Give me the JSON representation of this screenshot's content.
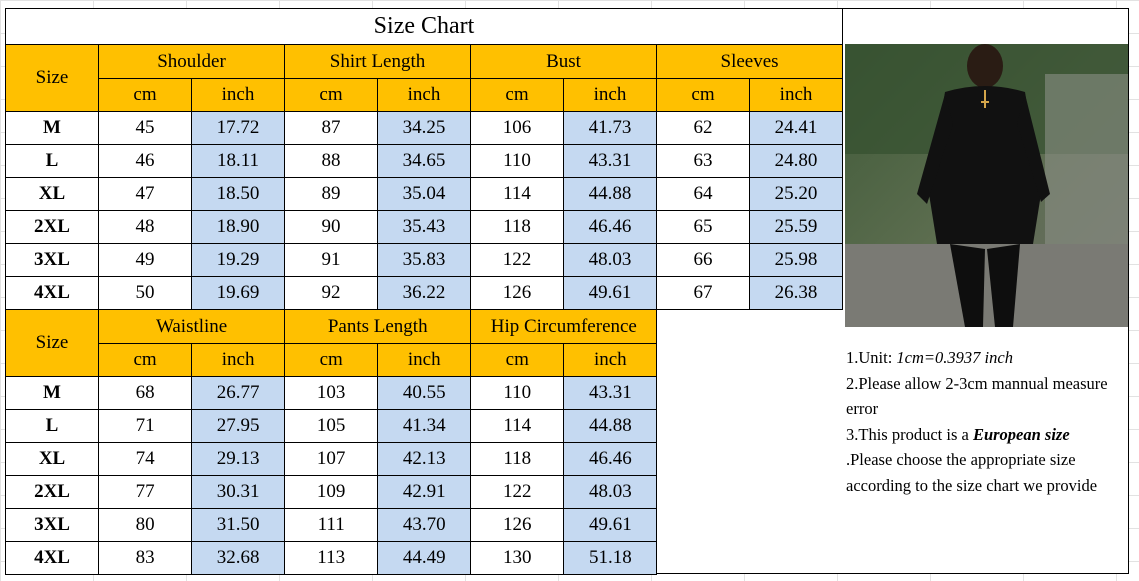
{
  "title": "Size Chart",
  "colors": {
    "header": "#ffc000",
    "inch": "#c5d9f1",
    "border": "#000000"
  },
  "table1": {
    "size_label": "Size",
    "groups": [
      "Shoulder",
      "Shirt Length",
      "Bust",
      "Sleeves"
    ],
    "units": [
      "cm",
      "inch"
    ],
    "rows": [
      {
        "size": "M",
        "vals": [
          "45",
          "17.72",
          "87",
          "34.25",
          "106",
          "41.73",
          "62",
          "24.41"
        ]
      },
      {
        "size": "L",
        "vals": [
          "46",
          "18.11",
          "88",
          "34.65",
          "110",
          "43.31",
          "63",
          "24.80"
        ]
      },
      {
        "size": "XL",
        "vals": [
          "47",
          "18.50",
          "89",
          "35.04",
          "114",
          "44.88",
          "64",
          "25.20"
        ]
      },
      {
        "size": "2XL",
        "vals": [
          "48",
          "18.90",
          "90",
          "35.43",
          "118",
          "46.46",
          "65",
          "25.59"
        ]
      },
      {
        "size": "3XL",
        "vals": [
          "49",
          "19.29",
          "91",
          "35.83",
          "122",
          "48.03",
          "66",
          "25.98"
        ]
      },
      {
        "size": "4XL",
        "vals": [
          "50",
          "19.69",
          "92",
          "36.22",
          "126",
          "49.61",
          "67",
          "26.38"
        ]
      }
    ]
  },
  "table2": {
    "size_label": "Size",
    "groups": [
      "Waistline",
      "Pants Length",
      "Hip Circumference"
    ],
    "units": [
      "cm",
      "inch"
    ],
    "rows": [
      {
        "size": "M",
        "vals": [
          "68",
          "26.77",
          "103",
          "40.55",
          "110",
          "43.31"
        ]
      },
      {
        "size": "L",
        "vals": [
          "71",
          "27.95",
          "105",
          "41.34",
          "114",
          "44.88"
        ]
      },
      {
        "size": "XL",
        "vals": [
          "74",
          "29.13",
          "107",
          "42.13",
          "118",
          "46.46"
        ]
      },
      {
        "size": "2XL",
        "vals": [
          "77",
          "30.31",
          "109",
          "42.91",
          "122",
          "48.03"
        ]
      },
      {
        "size": "3XL",
        "vals": [
          "80",
          "31.50",
          "111",
          "43.70",
          "126",
          "49.61"
        ]
      },
      {
        "size": "4XL",
        "vals": [
          "83",
          "32.68",
          "113",
          "44.49",
          "130",
          "51.18"
        ]
      }
    ]
  },
  "notes": {
    "n1_prefix": "1.Unit: ",
    "n1_value": "1cm=0.3937 inch",
    "n2": "2.Please allow 2-3cm mannual measure error",
    "n3_prefix": "3.This product is a ",
    "n3_emph": "European size",
    "n3_suffix": " .Please choose the appropriate size according to the size chart we provide"
  }
}
